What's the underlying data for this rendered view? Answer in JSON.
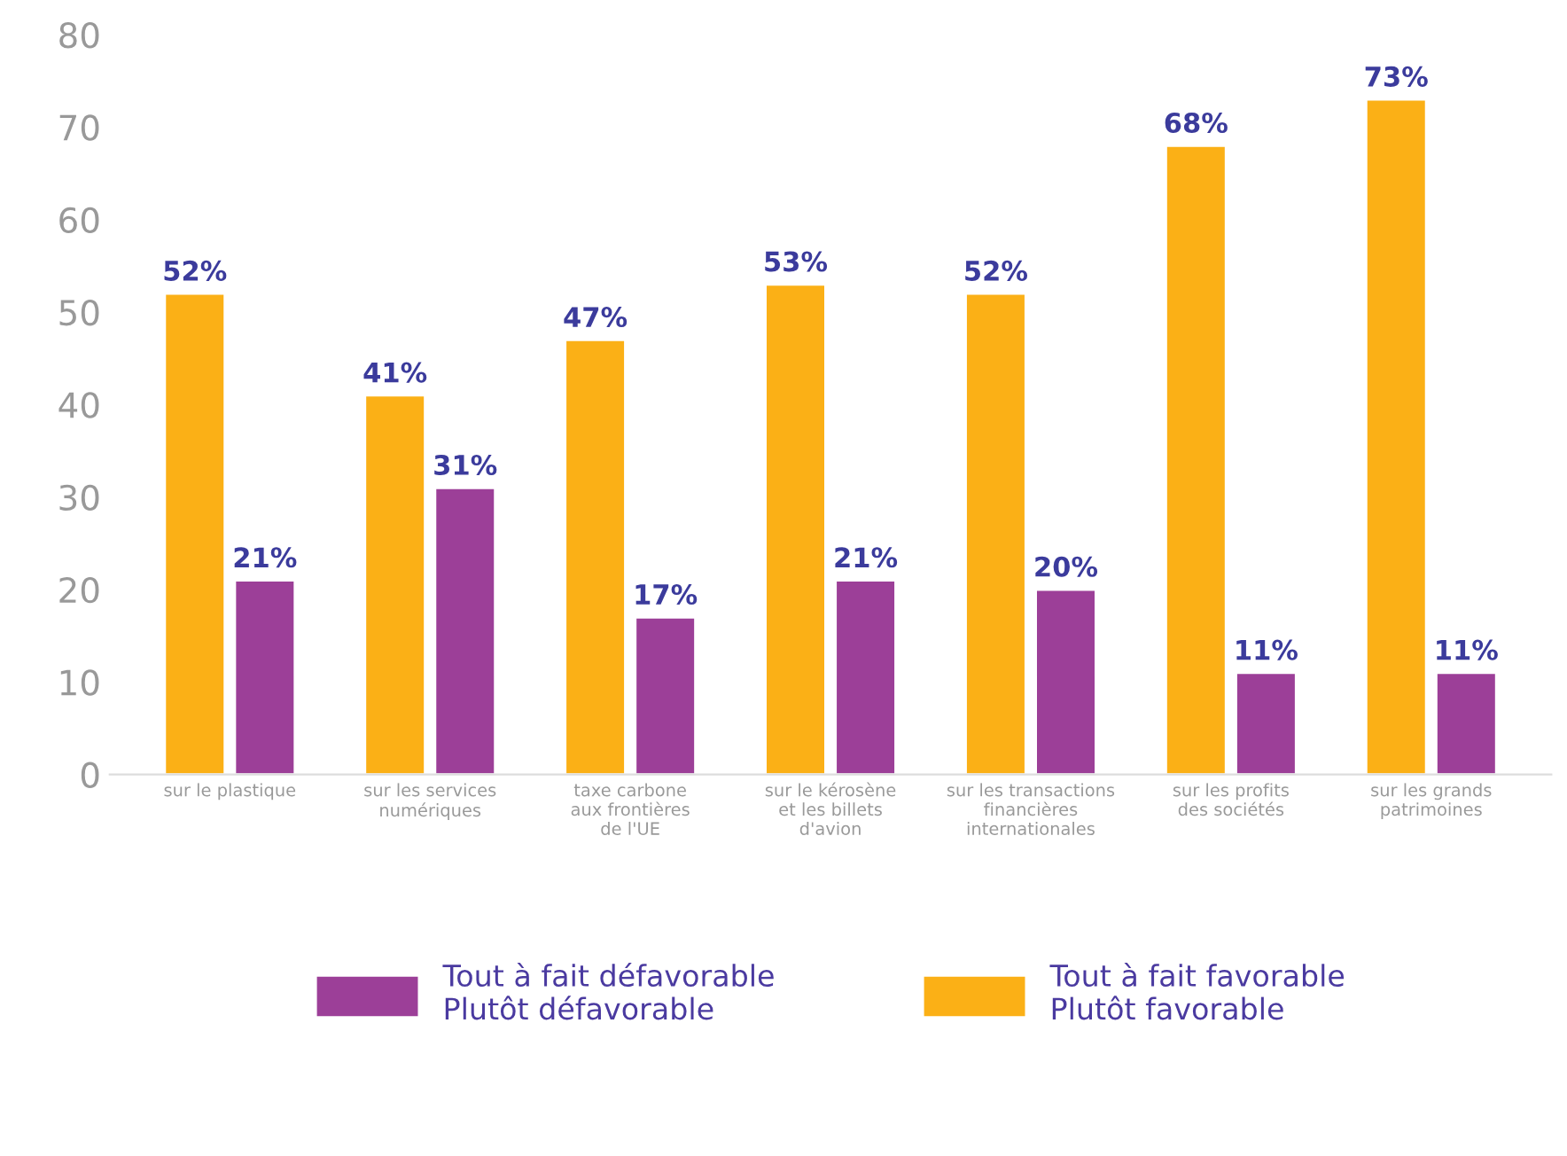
{
  "chart_data": {
    "type": "bar",
    "categories": [
      "sur le plastique",
      "sur les services\nnumériques",
      "taxe carbone\naux frontières\nde l'UE",
      "sur le kérosène\net les billets\nd'avion",
      "sur les transactions\nfinancières\ninternationales",
      "sur les profits\ndes sociétés",
      "sur les grands\npatrimoines"
    ],
    "series": [
      {
        "name": "Tout à fait favorable\nPlutôt favorable",
        "color": "#fbb016",
        "values": [
          52,
          41,
          47,
          53,
          52,
          68,
          73
        ],
        "value_labels": [
          "52%",
          "41%",
          "47%",
          "53%",
          "52%",
          "68%",
          "73%"
        ]
      },
      {
        "name": "Tout à fait défavorable\nPlutôt défavorable",
        "color": "#9c3f98",
        "values": [
          21,
          31,
          17,
          21,
          20,
          11,
          11
        ],
        "value_labels": [
          "21%",
          "31%",
          "17%",
          "21%",
          "20%",
          "11%",
          "11%"
        ]
      }
    ],
    "ylim": [
      0,
      80
    ],
    "yticks": [
      0,
      10,
      20,
      30,
      40,
      50,
      60,
      70,
      80
    ],
    "grid": false,
    "legend": "bottom"
  }
}
